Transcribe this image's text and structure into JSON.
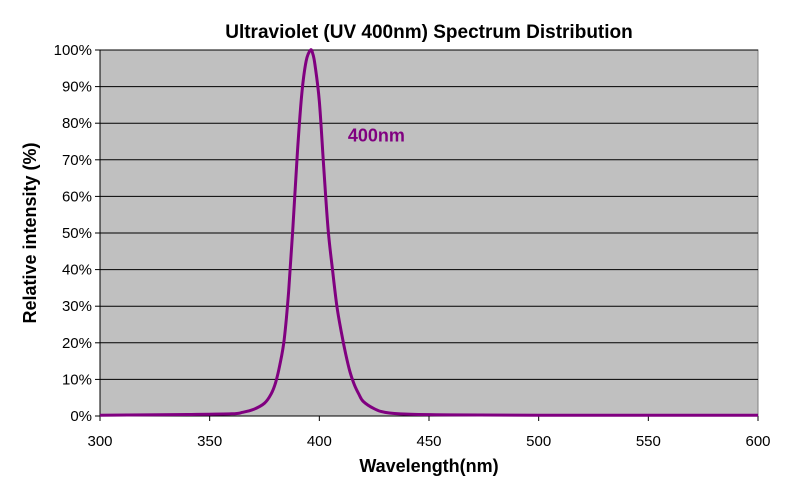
{
  "chart_data": {
    "type": "line",
    "title": "Ultraviolet (UV 400nm) Spectrum Distribution",
    "xlabel": "Wavelength(nm)",
    "ylabel": "Relative intensity (%)",
    "xlim": [
      300,
      600
    ],
    "ylim": [
      0,
      100
    ],
    "xticks": [
      300,
      350,
      400,
      450,
      500,
      550,
      600
    ],
    "yticks": [
      0,
      10,
      20,
      30,
      40,
      50,
      60,
      70,
      80,
      90,
      100
    ],
    "ytick_labels": [
      "0%",
      "10%",
      "20%",
      "30%",
      "40%",
      "50%",
      "60%",
      "70%",
      "80%",
      "90%",
      "100%"
    ],
    "grid": "horizontal",
    "plot_background": "#c0c0c0",
    "series": [
      {
        "color": "#800080",
        "x": [
          300,
          320,
          340,
          360,
          365,
          370,
          375,
          378,
          380,
          382,
          384,
          386,
          388,
          390,
          392,
          394,
          396,
          397,
          398,
          400,
          402,
          404,
          406,
          408,
          410,
          412,
          414,
          416,
          418,
          420,
          425,
          430,
          440,
          460,
          500,
          550,
          600
        ],
        "y": [
          0.2,
          0.3,
          0.4,
          0.6,
          1,
          1.8,
          3.5,
          6,
          9,
          14,
          21,
          34,
          52,
          72,
          88,
          97,
          100,
          99,
          96,
          86,
          68,
          51,
          40,
          30,
          23,
          17,
          12,
          8.5,
          6,
          4,
          2,
          1,
          0.5,
          0.3,
          0.2,
          0.2,
          0.2
        ]
      }
    ],
    "annotations": [
      {
        "text": "400nm",
        "x": 413,
        "y": 75,
        "color": "#800080"
      }
    ]
  }
}
